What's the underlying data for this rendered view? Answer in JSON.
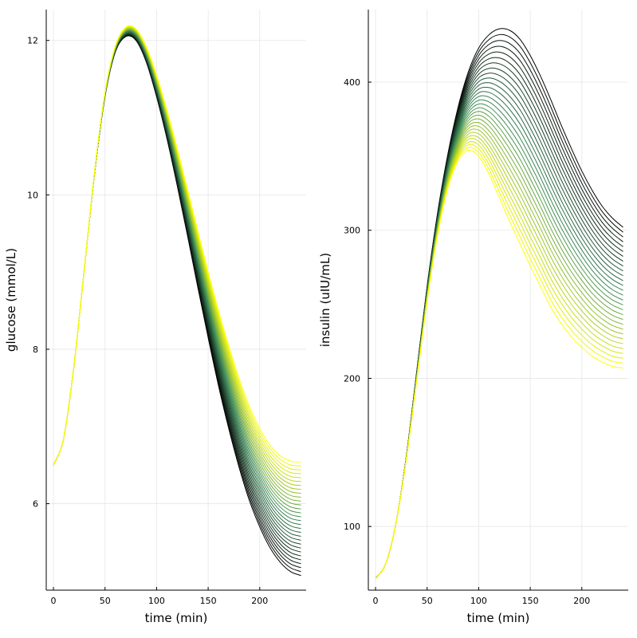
{
  "chart_data": [
    {
      "type": "line",
      "xlabel": "time (min)",
      "ylabel": "glucose (mmol/L)",
      "xlim": [
        -7,
        245
      ],
      "ylim": [
        4.88,
        12.4
      ],
      "xticks": [
        0,
        50,
        100,
        150,
        200
      ],
      "yticks": [
        6,
        8,
        10,
        12
      ],
      "grid": true,
      "legend": "none",
      "n_series": 30,
      "color_gradient": [
        "#000000",
        "#3d8c5c",
        "#ffff00"
      ],
      "family_envelope": {
        "x": [
          0,
          10,
          20,
          30,
          40,
          50,
          60,
          70,
          80,
          90,
          100,
          110,
          120,
          130,
          140,
          150,
          160,
          170,
          180,
          190,
          200,
          210,
          220,
          230,
          240
        ],
        "first_curve_y": [
          6.5,
          6.85,
          7.8,
          9.05,
          10.3,
          11.28,
          11.85,
          12.05,
          12.0,
          11.72,
          11.27,
          10.73,
          10.12,
          9.47,
          8.8,
          8.15,
          7.53,
          6.97,
          6.47,
          6.04,
          5.7,
          5.43,
          5.24,
          5.12,
          5.07
        ],
        "last_curve_y": [
          6.5,
          6.85,
          7.8,
          9.05,
          10.32,
          11.33,
          11.93,
          12.17,
          12.15,
          11.92,
          11.55,
          11.1,
          10.6,
          10.07,
          9.53,
          9.0,
          8.5,
          8.04,
          7.62,
          7.26,
          6.97,
          6.76,
          6.62,
          6.55,
          6.54
        ]
      }
    },
    {
      "type": "line",
      "xlabel": "time (min)",
      "ylabel": "insulin (uIU/mL)",
      "xlim": [
        -7,
        245
      ],
      "ylim": [
        57,
        449
      ],
      "xticks": [
        0,
        50,
        100,
        150,
        200
      ],
      "yticks": [
        100,
        200,
        300,
        400
      ],
      "grid": true,
      "legend": "none",
      "n_series": 30,
      "color_gradient": [
        "#000000",
        "#3d8c5c",
        "#ffff00"
      ],
      "family_envelope": {
        "x": [
          0,
          10,
          20,
          30,
          40,
          50,
          60,
          70,
          80,
          90,
          100,
          110,
          120,
          130,
          140,
          150,
          160,
          170,
          180,
          190,
          200,
          210,
          220,
          230,
          240
        ],
        "first_curve_y": [
          65,
          75,
          103,
          148,
          205,
          262,
          311,
          351,
          383,
          407,
          423,
          432,
          436,
          435,
          429,
          418,
          404,
          388,
          371,
          355,
          340,
          327,
          316,
          308,
          302
        ],
        "last_curve_y": [
          65,
          75,
          103,
          146,
          199,
          252,
          296,
          328,
          347,
          354,
          350,
          338,
          322,
          306,
          291,
          276,
          262,
          248,
          237,
          228,
          221,
          215,
          211,
          208,
          207
        ]
      }
    }
  ]
}
